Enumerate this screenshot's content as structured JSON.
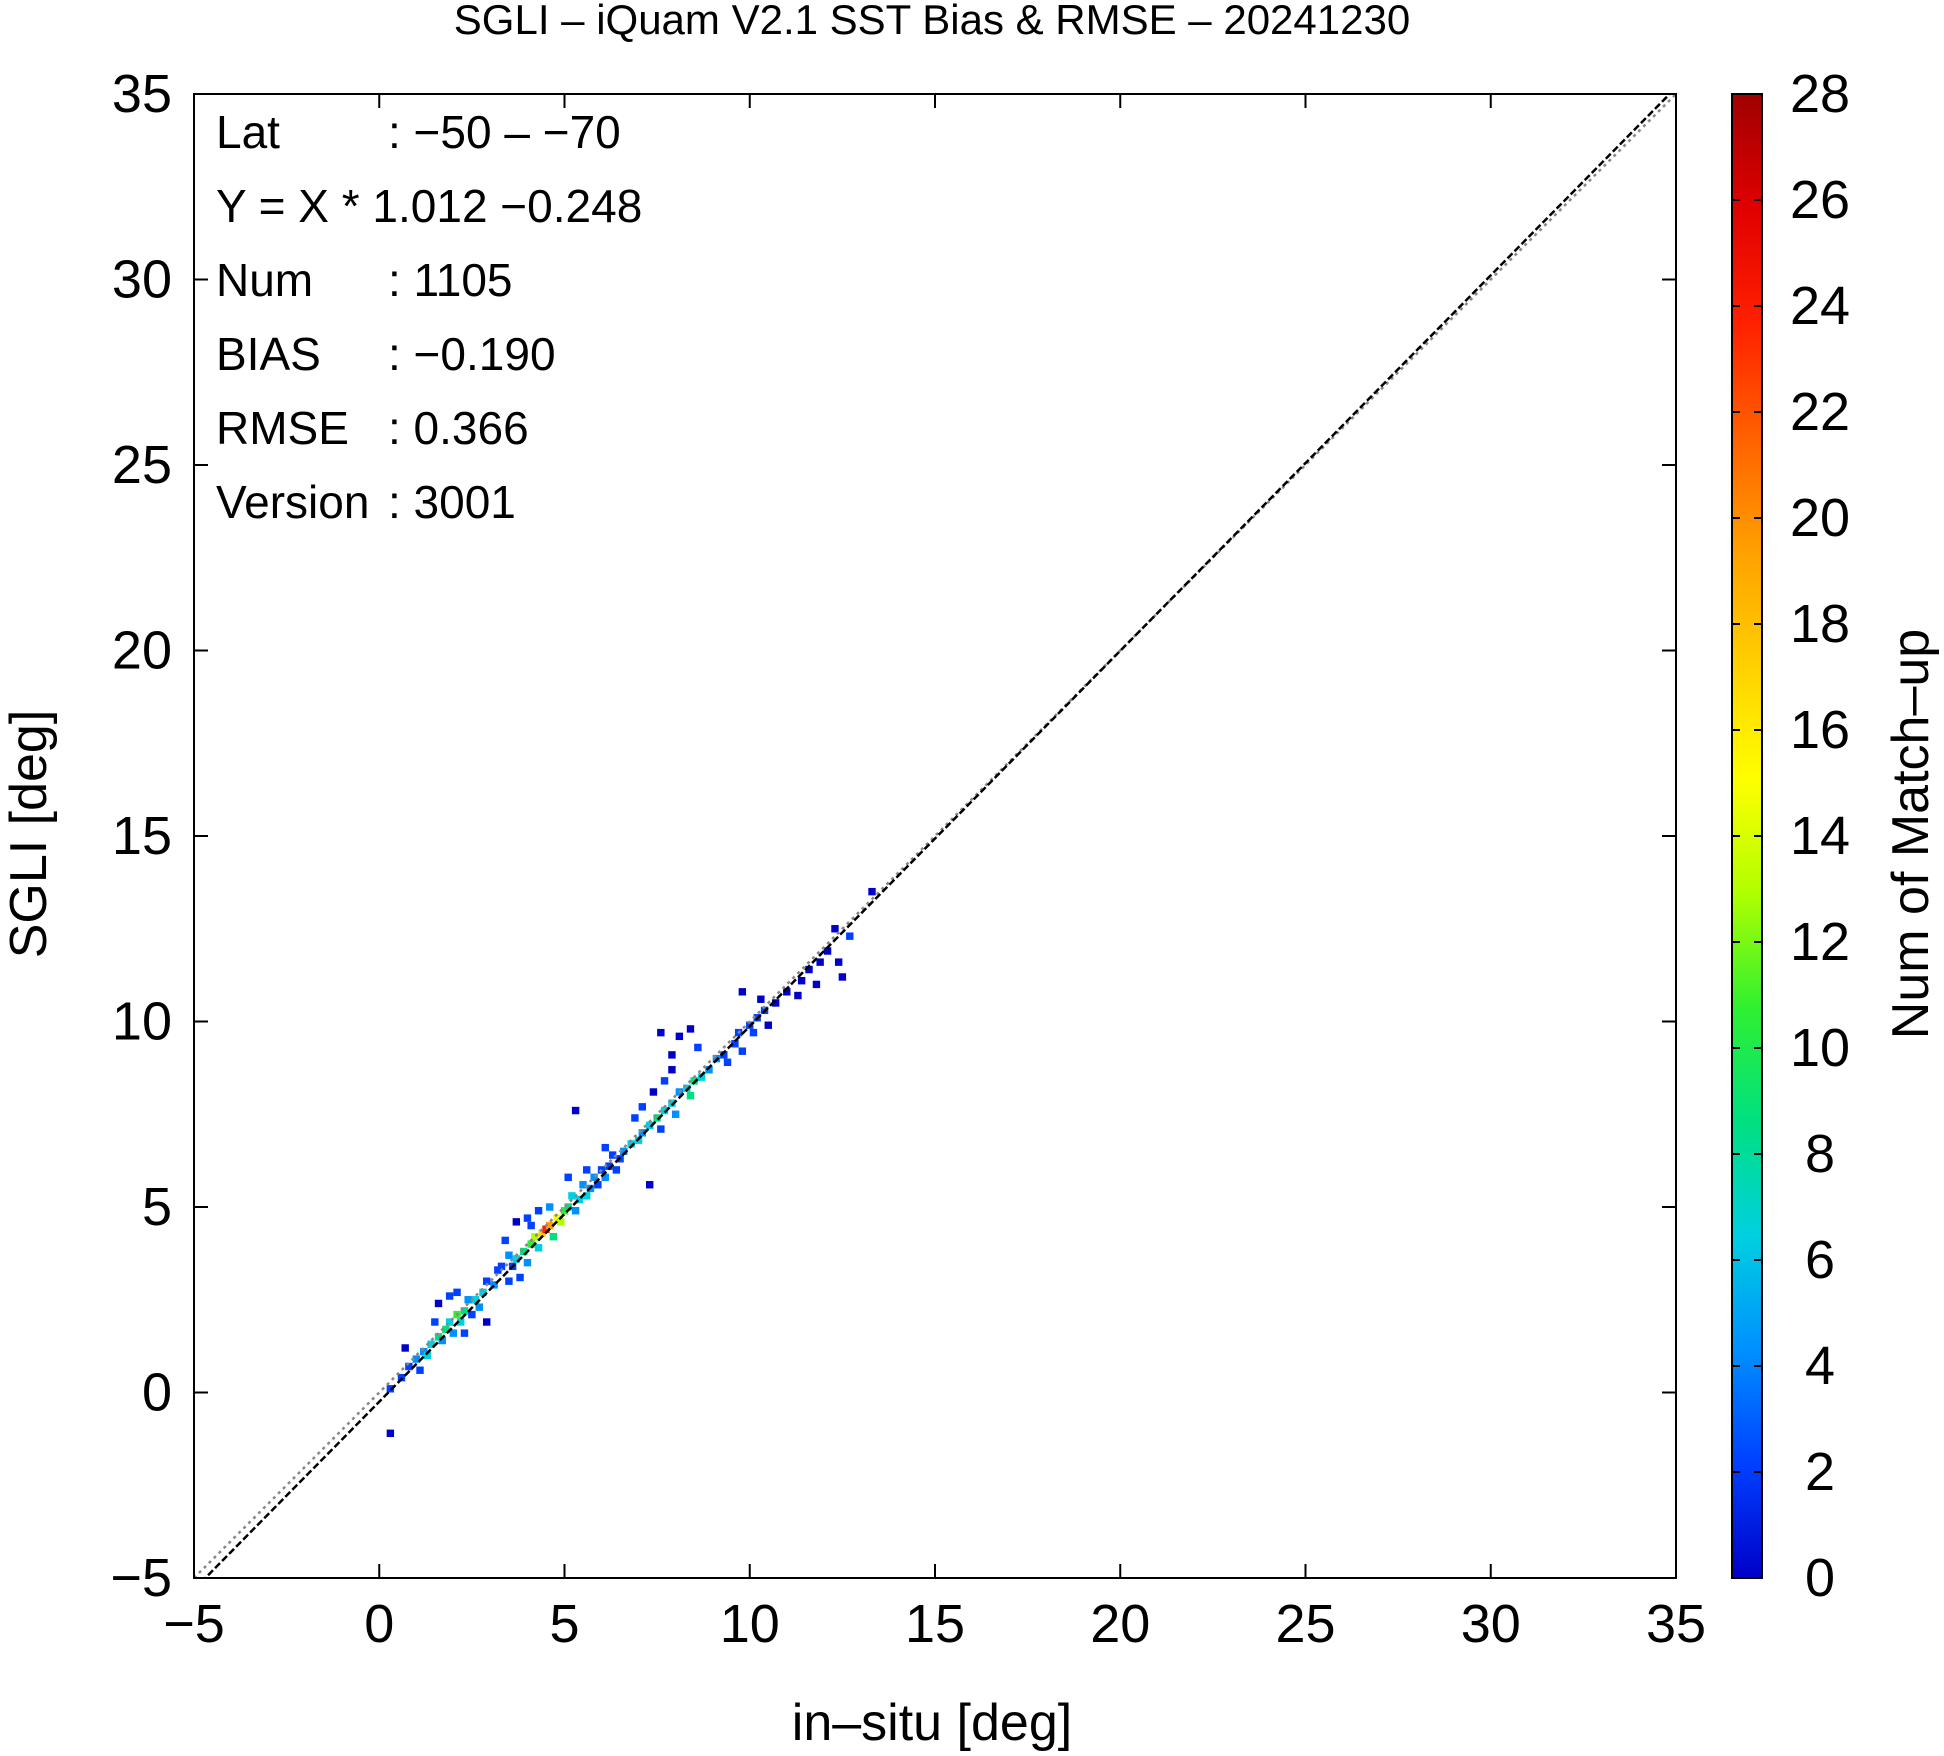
{
  "chart_data": {
    "type": "heatmap",
    "title": "SGLI – iQuam V2.1 SST Bias & RMSE  – 20241230",
    "xlabel": "in–situ [deg]",
    "ylabel": "SGLI [deg]",
    "colorbar_label": "Num of Match–up",
    "xlim": [
      -5,
      35
    ],
    "ylim": [
      -5,
      35
    ],
    "x_ticks": [
      "−5",
      "0",
      "5",
      "10",
      "15",
      "20",
      "25",
      "30",
      "35"
    ],
    "y_ticks": [
      "−5",
      "0",
      "5",
      "10",
      "15",
      "20",
      "25",
      "30",
      "35"
    ],
    "colorbar_range": [
      0,
      28
    ],
    "colorbar_ticks": [
      "0",
      "2",
      "4",
      "6",
      "8",
      "10",
      "12",
      "14",
      "16",
      "18",
      "20",
      "22",
      "24",
      "26",
      "28"
    ],
    "colorbar_colors": [
      "#0000c8",
      "#0040ff",
      "#0090ff",
      "#00d0e0",
      "#00e080",
      "#30f030",
      "#b0ff00",
      "#ffff00",
      "#ffd000",
      "#ffa000",
      "#ff6000",
      "#ff2000",
      "#e00000",
      "#a00000"
    ],
    "reference_lines": [
      {
        "name": "1:1",
        "style": "dotted",
        "color": "#888888"
      },
      {
        "name": "regression",
        "slope": 1.012,
        "intercept": -0.248,
        "style": "dashed",
        "color": "#000000"
      }
    ],
    "stats": [
      {
        "label": "Lat",
        "value": ": −50 – −70"
      },
      {
        "label": "Y = X * 1.012 −0.248",
        "value": ""
      },
      {
        "label": "Num",
        "value": ": 1105"
      },
      {
        "label": "BIAS",
        "value": ": −0.190"
      },
      {
        "label": "RMSE",
        "value": ": 0.366"
      },
      {
        "label": "Version",
        "value": ": 3001"
      }
    ],
    "cells": [
      [
        0.2,
        0.0,
        2
      ],
      [
        0.2,
        -1.2,
        1
      ],
      [
        0.5,
        0.3,
        3
      ],
      [
        0.7,
        0.6,
        3
      ],
      [
        0.9,
        0.8,
        4
      ],
      [
        1.1,
        1.0,
        5
      ],
      [
        1.2,
        0.9,
        7
      ],
      [
        1.3,
        1.2,
        6
      ],
      [
        1.5,
        1.4,
        8
      ],
      [
        1.6,
        1.3,
        5
      ],
      [
        1.7,
        1.6,
        9
      ],
      [
        1.8,
        1.8,
        7
      ],
      [
        1.9,
        1.5,
        4
      ],
      [
        2.0,
        2.0,
        10
      ],
      [
        2.1,
        1.8,
        6
      ],
      [
        2.2,
        2.1,
        8
      ],
      [
        2.3,
        2.4,
        5
      ],
      [
        2.4,
        2.0,
        3
      ],
      [
        2.5,
        2.4,
        7
      ],
      [
        2.6,
        2.2,
        4
      ],
      [
        2.7,
        2.6,
        6
      ],
      [
        2.8,
        2.9,
        3
      ],
      [
        3.0,
        2.8,
        5
      ],
      [
        3.1,
        3.2,
        2
      ],
      [
        1.0,
        0.5,
        2
      ],
      [
        1.4,
        1.8,
        2
      ],
      [
        1.8,
        2.5,
        2
      ],
      [
        2.0,
        2.6,
        2
      ],
      [
        2.2,
        1.5,
        2
      ],
      [
        2.8,
        1.8,
        1
      ],
      [
        0.6,
        1.1,
        1
      ],
      [
        1.5,
        2.3,
        1
      ],
      [
        3.2,
        3.3,
        3
      ],
      [
        3.4,
        3.6,
        4
      ],
      [
        3.5,
        3.3,
        3
      ],
      [
        3.6,
        3.5,
        6
      ],
      [
        3.8,
        3.7,
        8
      ],
      [
        3.9,
        3.4,
        4
      ],
      [
        4.0,
        3.9,
        10
      ],
      [
        4.1,
        4.1,
        12
      ],
      [
        4.2,
        3.8,
        6
      ],
      [
        4.3,
        4.2,
        18
      ],
      [
        4.4,
        4.3,
        24
      ],
      [
        4.5,
        4.4,
        20
      ],
      [
        4.6,
        4.1,
        9
      ],
      [
        4.7,
        4.6,
        16
      ],
      [
        4.8,
        4.5,
        12
      ],
      [
        4.9,
        4.8,
        10
      ],
      [
        3.3,
        4.0,
        2
      ],
      [
        3.6,
        4.5,
        1
      ],
      [
        3.9,
        4.6,
        2
      ],
      [
        4.2,
        4.8,
        2
      ],
      [
        3.4,
        2.9,
        2
      ],
      [
        3.7,
        3.0,
        2
      ],
      [
        4.0,
        4.4,
        3
      ],
      [
        4.5,
        4.9,
        4
      ],
      [
        5.0,
        4.9,
        8
      ],
      [
        5.1,
        5.2,
        6
      ],
      [
        5.2,
        4.8,
        5
      ],
      [
        5.3,
        5.1,
        7
      ],
      [
        5.4,
        5.5,
        4
      ],
      [
        5.5,
        5.2,
        6
      ],
      [
        5.6,
        5.4,
        5
      ],
      [
        5.7,
        5.7,
        4
      ],
      [
        5.8,
        5.5,
        3
      ],
      [
        5.9,
        5.9,
        3
      ],
      [
        6.0,
        5.7,
        4
      ],
      [
        6.1,
        6.0,
        3
      ],
      [
        6.2,
        6.3,
        2
      ],
      [
        5.2,
        7.5,
        1
      ],
      [
        5.0,
        5.7,
        2
      ],
      [
        5.5,
        5.9,
        2
      ],
      [
        6.0,
        6.5,
        2
      ],
      [
        6.3,
        5.9,
        2
      ],
      [
        6.4,
        6.2,
        3
      ],
      [
        6.5,
        6.4,
        5
      ],
      [
        6.7,
        6.6,
        6
      ],
      [
        6.9,
        6.7,
        7
      ],
      [
        7.0,
        6.9,
        5
      ],
      [
        7.2,
        7.1,
        6
      ],
      [
        7.4,
        7.3,
        8
      ],
      [
        7.5,
        7.0,
        3
      ],
      [
        7.6,
        7.5,
        7
      ],
      [
        7.8,
        7.7,
        6
      ],
      [
        7.9,
        7.4,
        4
      ],
      [
        8.0,
        8.0,
        5
      ],
      [
        8.2,
        8.1,
        7
      ],
      [
        8.3,
        7.9,
        8
      ],
      [
        8.4,
        8.3,
        9
      ],
      [
        8.6,
        8.4,
        6
      ],
      [
        8.8,
        8.6,
        5
      ],
      [
        9.0,
        8.9,
        4
      ],
      [
        7.2,
        5.5,
        1
      ],
      [
        6.8,
        7.3,
        2
      ],
      [
        7.0,
        7.6,
        2
      ],
      [
        7.3,
        8.0,
        1
      ],
      [
        7.6,
        8.3,
        2
      ],
      [
        7.8,
        8.6,
        1
      ],
      [
        7.8,
        9.0,
        1
      ],
      [
        7.5,
        9.6,
        1
      ],
      [
        8.0,
        9.5,
        1
      ],
      [
        8.3,
        9.7,
        1
      ],
      [
        8.5,
        9.2,
        2
      ],
      [
        9.2,
        9.0,
        3
      ],
      [
        9.3,
        8.8,
        2
      ],
      [
        9.5,
        9.3,
        3
      ],
      [
        9.6,
        9.6,
        2
      ],
      [
        9.7,
        9.1,
        3
      ],
      [
        9.9,
        9.8,
        2
      ],
      [
        10.0,
        9.6,
        2
      ],
      [
        10.1,
        10.0,
        2
      ],
      [
        10.3,
        10.2,
        2
      ],
      [
        10.4,
        9.8,
        1
      ],
      [
        10.6,
        10.4,
        1
      ],
      [
        9.7,
        10.7,
        1
      ],
      [
        10.2,
        10.5,
        1
      ],
      [
        10.9,
        10.7,
        1
      ],
      [
        11.2,
        10.6,
        1
      ],
      [
        11.3,
        11.0,
        1
      ],
      [
        11.5,
        11.3,
        1
      ],
      [
        11.7,
        10.9,
        1
      ],
      [
        11.8,
        11.5,
        1
      ],
      [
        12.0,
        11.8,
        1
      ],
      [
        12.3,
        11.5,
        1
      ],
      [
        12.4,
        11.1,
        1
      ],
      [
        12.6,
        12.2,
        2
      ],
      [
        12.2,
        12.4,
        1
      ],
      [
        13.2,
        13.4,
        1
      ]
    ]
  }
}
